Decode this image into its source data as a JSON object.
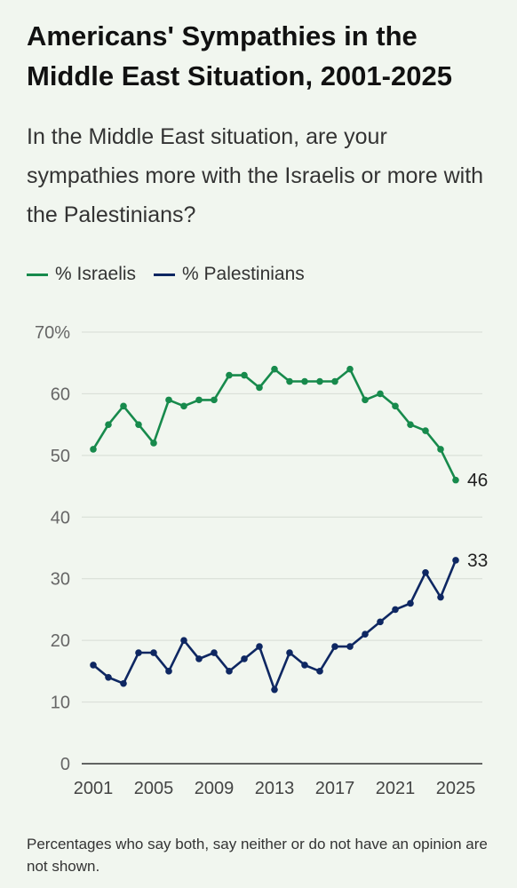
{
  "title": "Americans' Sympathies in the Middle East Situation, 2001-2025",
  "subtitle": "In the Middle East situation, are your sympathies more with the Israelis or more with the Palestinians?",
  "footnote": "Percentages who say both, say neither or do not have an opinion are not shown.",
  "chart_data": {
    "type": "line",
    "title": "Americans' Sympathies in the Middle East Situation, 2001-2025",
    "xlabel": "",
    "ylabel": "",
    "x": [
      2001,
      2002,
      2003,
      2004,
      2005,
      2006,
      2007,
      2008,
      2009,
      2010,
      2011,
      2012,
      2013,
      2014,
      2015,
      2016,
      2017,
      2018,
      2019,
      2020,
      2021,
      2022,
      2023,
      2024,
      2025
    ],
    "x_ticks": [
      "2001",
      "2005",
      "2009",
      "2013",
      "2017",
      "2021",
      "2025"
    ],
    "y_ticks": [
      "70%",
      "60",
      "50",
      "40",
      "30",
      "20",
      "10",
      "0"
    ],
    "ylim": [
      0,
      70
    ],
    "grid": true,
    "legend_position": "top-left",
    "series": [
      {
        "name": "% Israelis",
        "color": "#178a4c",
        "end_label": "46",
        "values": [
          51,
          55,
          58,
          55,
          52,
          59,
          58,
          59,
          59,
          63,
          63,
          61,
          64,
          62,
          62,
          62,
          62,
          64,
          59,
          60,
          58,
          55,
          54,
          51,
          46
        ]
      },
      {
        "name": "% Palestinians",
        "color": "#0e2762",
        "end_label": "33",
        "values": [
          16,
          14,
          13,
          18,
          18,
          15,
          20,
          17,
          18,
          15,
          17,
          19,
          12,
          18,
          16,
          15,
          19,
          19,
          21,
          23,
          25,
          26,
          31,
          27,
          33
        ]
      }
    ]
  }
}
